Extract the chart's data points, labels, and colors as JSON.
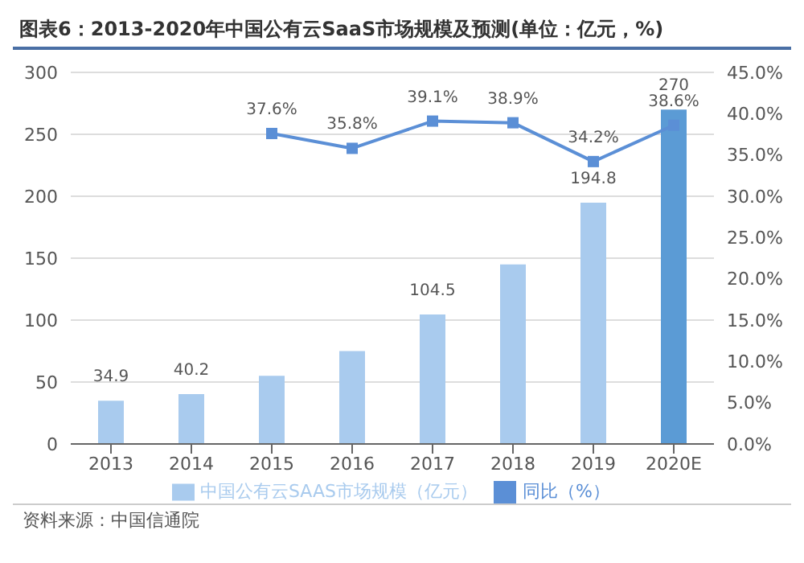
{
  "chart_data": {
    "type": "bar",
    "title": "图表6：2013-2020年中国公有云SaaS市场规模及预测(单位：亿元，%)",
    "categories": [
      "2013",
      "2014",
      "2015",
      "2016",
      "2017",
      "2018",
      "2019",
      "2020E"
    ],
    "series": [
      {
        "name": "中国公有云SAAS市场规模（亿元）",
        "color": "#a9cbee",
        "colors": [
          "#a9cbee",
          "#a9cbee",
          "#a9cbee",
          "#a9cbee",
          "#a9cbee",
          "#a9cbee",
          "#a9cbee",
          "#5b9bd5"
        ],
        "values": [
          34.9,
          40.2,
          55,
          75,
          104.5,
          145,
          194.8,
          270
        ],
        "value_labels": [
          "34.9",
          "40.2",
          null,
          null,
          "104.5",
          null,
          "194.8",
          "270"
        ]
      },
      {
        "name": "同比（%）",
        "type": "line",
        "axis": "y2",
        "color": "#5b8fd6",
        "values": [
          null,
          null,
          37.6,
          35.8,
          39.1,
          38.9,
          34.2,
          38.6
        ],
        "value_labels": [
          null,
          null,
          "37.6%",
          "35.8%",
          "39.1%",
          "38.9%",
          "34.2%",
          "38.6%"
        ]
      }
    ],
    "ylim": [
      0,
      300
    ],
    "yticks": [
      0,
      50,
      100,
      150,
      200,
      250,
      300
    ],
    "y2lim": [
      0,
      45
    ],
    "y2ticks": [
      {
        "value": 0,
        "label": "0.0%"
      },
      {
        "value": 5,
        "label": "5.0%"
      },
      {
        "value": 10,
        "label": "10.0%"
      },
      {
        "value": 15,
        "label": "15.0%"
      },
      {
        "value": 20,
        "label": "20.0%"
      },
      {
        "value": 25,
        "label": "25.0%"
      },
      {
        "value": 30,
        "label": "30.0%"
      },
      {
        "value": 35,
        "label": "35.0%"
      },
      {
        "value": 40,
        "label": "40.0%"
      },
      {
        "value": 45,
        "label": "45.0%"
      }
    ],
    "grid": "y",
    "legend": "bottom",
    "marker": "square",
    "annotations": [
      "资料来源：中国信通院"
    ]
  }
}
